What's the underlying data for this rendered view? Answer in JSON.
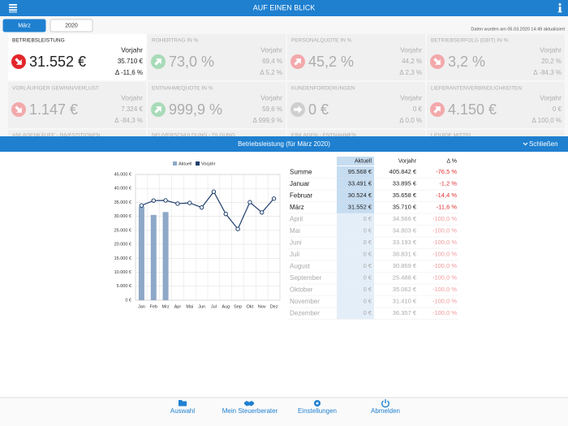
{
  "header": {
    "title": "AUF EINEN BLICK"
  },
  "tabs": [
    {
      "label": "März",
      "selected": true
    },
    {
      "label": "2020",
      "selected": false
    }
  ],
  "updated": "Daten wurden am 05.03.2020 14:49 aktualisiert",
  "tiles": [
    {
      "label": "BETRIEBSLEISTUNG",
      "value": "31.552 €",
      "prior_label": "Vorjahr",
      "prior": "35.710 €",
      "delta": "Δ -11,6 %",
      "trend": "down",
      "icon_color": "#e3262b",
      "active": true
    },
    {
      "label": "ROHERTRAG IN %",
      "value": "73,0 %",
      "prior_label": "Vorjahr",
      "prior": "69,4 %",
      "delta": "Δ 5,2 %",
      "trend": "up",
      "icon_color": "#a8dbb8",
      "active": false
    },
    {
      "label": "PERSONALQUOTE IN %",
      "value": "45,2 %",
      "prior_label": "Vorjahr",
      "prior": "44,2 %",
      "delta": "Δ 2,3 %",
      "trend": "up",
      "icon_color": "#f3a9ab",
      "active": false
    },
    {
      "label": "BETRIEBSERFOLG (EBIT) IN %",
      "value": "3,2 %",
      "prior_label": "Vorjahr",
      "prior": "20,2 %",
      "delta": "Δ -84,3 %",
      "trend": "down",
      "icon_color": "#f3a9ab",
      "active": false
    },
    {
      "label": "VORLÄUFIGER GEWINN/VERLUST",
      "value": "1.147 €",
      "prior_label": "Vorjahr",
      "prior": "7.324 €",
      "delta": "Δ -84,3 %",
      "trend": "down",
      "icon_color": "#f3a9ab",
      "active": false
    },
    {
      "label": "ENTNAHMEQUOTE IN %",
      "value": "999,9 %",
      "prior_label": "Vorjahr",
      "prior": "59,6 %",
      "delta": "Δ 999,9 %",
      "trend": "up",
      "icon_color": "#a8dbb8",
      "active": false
    },
    {
      "label": "KUNDENFORDERUNGEN",
      "value": "0 €",
      "prior_label": "Vorjahr",
      "prior": "0 €",
      "delta": "Δ 0,0 %",
      "trend": "flat",
      "icon_color": "#cfcfcf",
      "active": false
    },
    {
      "label": "LIEFERANTENVERBINDLICHKEITEN",
      "value": "4.150 €",
      "prior_label": "Vorjahr",
      "prior": "0 €",
      "delta": "Δ 100,0 %",
      "trend": "up",
      "icon_color": "#f3a9ab",
      "active": false
    }
  ],
  "more_tiles": [
    "ANLAGENKÄUFE - INVESTITIONEN",
    "NEUVERSCHULDUNG - TILGUNG",
    "EINLAGEN - ENTNAHMEN",
    "LIQUIDE MITTEL"
  ],
  "panel": {
    "title": "Betriebsleistung (für März 2020)",
    "close": "Schließen"
  },
  "chart_data": {
    "type": "combo",
    "categories": [
      "Jan",
      "Feb",
      "Mrz",
      "Apr",
      "Mai",
      "Jun",
      "Jul",
      "Aug",
      "Sep",
      "Okt",
      "Nov",
      "Dez"
    ],
    "series": [
      {
        "name": "Aktuell",
        "type": "bar",
        "color": "#8ea8c7",
        "values": [
          33491,
          30524,
          31552,
          0,
          0,
          0,
          0,
          0,
          0,
          0,
          0,
          0
        ]
      },
      {
        "name": "Vorjahr",
        "type": "line",
        "color": "#1f3e6d",
        "values": [
          33895,
          35658,
          35710,
          34566,
          34803,
          33193,
          38831,
          30869,
          25488,
          35062,
          31410,
          36357
        ]
      }
    ],
    "ylim": [
      0,
      45000
    ],
    "yticks": [
      {
        "value": 0,
        "label": "0 €"
      },
      {
        "value": 5000,
        "label": "5.000 €"
      },
      {
        "value": 10000,
        "label": "10.000 €"
      },
      {
        "value": 15000,
        "label": "15.000 €"
      },
      {
        "value": 20000,
        "label": "20.000 €"
      },
      {
        "value": 25000,
        "label": "25.000 €"
      },
      {
        "value": 30000,
        "label": "30.000 €"
      },
      {
        "value": 35000,
        "label": "35.000 €"
      },
      {
        "value": 40000,
        "label": "40.000 €"
      },
      {
        "value": 45000,
        "label": "45.000 €"
      }
    ],
    "grid": true,
    "legend": "top"
  },
  "table": {
    "columns": [
      "Aktuell",
      "Vorjahr",
      "Δ %"
    ],
    "rows": [
      {
        "cells": [
          "Summe",
          "95.568 €",
          "405.842 €",
          "-76,5 %"
        ],
        "current": true
      },
      {
        "cells": [
          "Januar",
          "33.491 €",
          "33.895 €",
          "-1,2 %"
        ],
        "current": true
      },
      {
        "cells": [
          "Februar",
          "30.524 €",
          "35.658 €",
          "-14,4 %"
        ],
        "current": true
      },
      {
        "cells": [
          "März",
          "31.552 €",
          "35.710 €",
          "-11,6 %"
        ],
        "current": true
      },
      {
        "cells": [
          "April",
          "0 €",
          "34.566 €",
          "-100,0 %"
        ],
        "current": false
      },
      {
        "cells": [
          "Mai",
          "0 €",
          "34.803 €",
          "-100,0 %"
        ],
        "current": false
      },
      {
        "cells": [
          "Juni",
          "0 €",
          "33.193 €",
          "-100,0 %"
        ],
        "current": false
      },
      {
        "cells": [
          "Juli",
          "0 €",
          "38.831 €",
          "-100,0 %"
        ],
        "current": false
      },
      {
        "cells": [
          "August",
          "0 €",
          "30.869 €",
          "-100,0 %"
        ],
        "current": false
      },
      {
        "cells": [
          "September",
          "0 €",
          "25.488 €",
          "-100,0 %"
        ],
        "current": false
      },
      {
        "cells": [
          "Oktober",
          "0 €",
          "35.062 €",
          "-100,0 %"
        ],
        "current": false
      },
      {
        "cells": [
          "November",
          "0 €",
          "31.410 €",
          "-100,0 %"
        ],
        "current": false
      },
      {
        "cells": [
          "Dezember",
          "0 €",
          "36.357 €",
          "-100,0 %"
        ],
        "current": false
      }
    ]
  },
  "nav": [
    "Auswahl",
    "Mein Steuerberater",
    "Einstellungen",
    "Abmelden"
  ]
}
